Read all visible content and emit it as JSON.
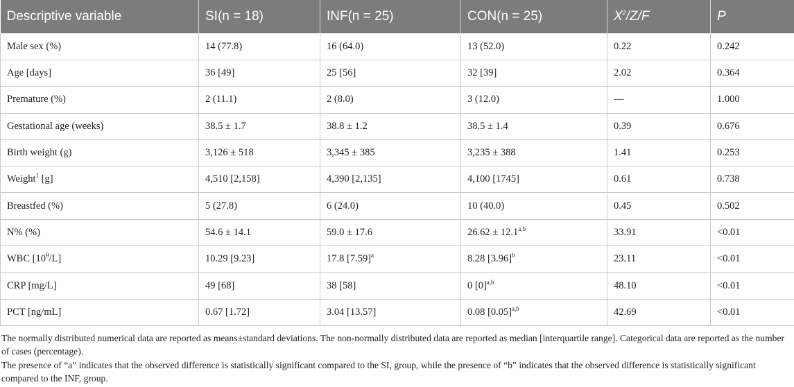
{
  "table": {
    "headers": [
      "Descriptive variable",
      "SI(n = 18)",
      "INF(n = 25)",
      "CON(n = 25)",
      "X",
      "2",
      "/Z/F",
      "P"
    ],
    "rows": [
      {
        "variable": "Male sex (%)",
        "si": "14 (77.8)",
        "inf": "16 (64.0)",
        "con": "13 (52.0)",
        "stat": "0.22",
        "p": "0.242"
      },
      {
        "variable": "Age [days]",
        "si": "36 [49]",
        "inf": "25 [56]",
        "con": "32 [39]",
        "stat": "2.02",
        "p": "0.364"
      },
      {
        "variable": "Premature (%)",
        "si": "2 (11.1)",
        "inf": "2 (8.0)",
        "con": "3 (12.0)",
        "stat": "—",
        "p": "1.000"
      },
      {
        "variable": "Gestational age (weeks)",
        "si": "38.5 ± 1.7",
        "inf": "38.8 ± 1.2",
        "con": "38.5 ± 1.4",
        "stat": "0.39",
        "p": "0.676"
      },
      {
        "variable": "Birth weight (g)",
        "si": "3,126 ± 518",
        "inf": "3,345 ± 385",
        "con": "3,235 ± 388",
        "stat": "1.41",
        "p": "0.253"
      },
      {
        "variable": "Weight",
        "variable_sup": "1",
        "variable_rest": " [g]",
        "si": "4,510 [2,158]",
        "inf": "4,390 [2,135]",
        "con": "4,100 [1745]",
        "stat": "0.61",
        "p": "0.738"
      },
      {
        "variable": "Breastfed (%)",
        "si": "5 (27.8)",
        "inf": "6 (24.0)",
        "con": "10 (40.0)",
        "stat": "0.45",
        "p": "0.502"
      },
      {
        "variable": "N% (%)",
        "si": "54.6 ± 14.1",
        "inf": "59.0 ± 17.6",
        "con": "26.62 ± 12.1",
        "con_sup": "a,b",
        "stat": "33.91",
        "p": "<0.01"
      },
      {
        "variable": "WBC [10",
        "variable_sup": "9",
        "variable_rest": "/L]",
        "si": "10.29 [9.23]",
        "inf": "17.8 [7.59]",
        "inf_sup": "a",
        "con": "8.28 [3.96]",
        "con_sup": "b",
        "stat": "23.11",
        "p": "<0.01"
      },
      {
        "variable": "CRP [mg/L]",
        "si": "49 [68]",
        "inf": "38 [58]",
        "con": "0 [0]",
        "con_sup": "a,b",
        "stat": "48.10",
        "p": "<0.01"
      },
      {
        "variable": "PCT [ng/mL]",
        "si": "0.67 [1.72]",
        "inf": "3.04 [13.57]",
        "con": "0.08 [0.05]",
        "con_sup": "a,b",
        "stat": "42.69",
        "p": "<0.01"
      }
    ]
  },
  "notes": [
    "The normally distributed numerical data are reported as means±standard deviations. The non-normally distributed data are reported as median [interquartile range]. Categorical data are reported as the number of cases (percentage).",
    "The presence of “a” indicates that the observed difference is statistically significant compared to the SI, group, while the presence of “b” indicates that the observed difference is statistically significant compared to the INF, group."
  ]
}
